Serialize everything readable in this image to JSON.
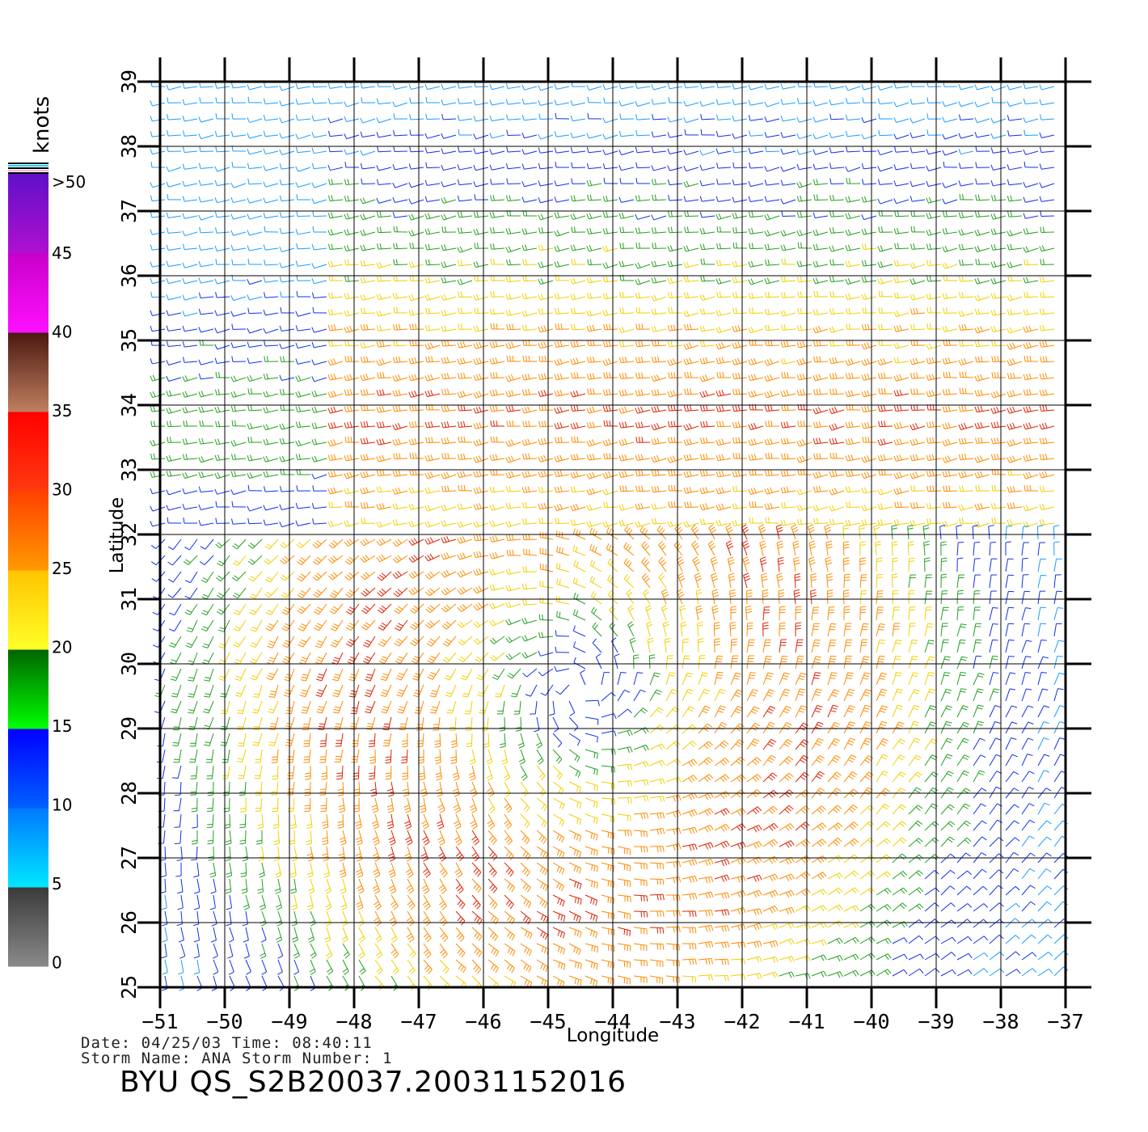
{
  "colorbar": {
    "unit": "knots",
    "labels": [
      ">50",
      "45",
      "40",
      "35",
      "30",
      "25",
      "20",
      "15",
      "10",
      "5",
      "0"
    ],
    "segments": [
      {
        "from": 0,
        "to": 5,
        "top": "#3a3a3a",
        "bottom": "#8a8a8a"
      },
      {
        "from": 5,
        "to": 10,
        "top": "#0078ff",
        "bottom": "#00e8ff"
      },
      {
        "from": 10,
        "to": 15,
        "top": "#0000ff",
        "bottom": "#0060ff"
      },
      {
        "from": 15,
        "to": 20,
        "top": "#006400",
        "bottom": "#00ff00"
      },
      {
        "from": 20,
        "to": 25,
        "top": "#ffc400",
        "bottom": "#ffff28"
      },
      {
        "from": 25,
        "to": 30,
        "top": "#ff4000",
        "bottom": "#ff9a00"
      },
      {
        "from": 30,
        "to": 35,
        "top": "#ff0000",
        "bottom": "#ff3a10"
      },
      {
        "from": 35,
        "to": 40,
        "top": "#4a1810",
        "bottom": "#c08060"
      },
      {
        "from": 40,
        "to": 45,
        "top": "#c800c8",
        "bottom": "#ff10ff"
      },
      {
        "from": 45,
        "to": 50,
        "top": "#6010c8",
        "bottom": "#b010d0"
      }
    ]
  },
  "axes": {
    "xlabel": "Longitude",
    "ylabel": "Latitude",
    "xlim": [
      -51,
      -37
    ],
    "ylim": [
      25,
      39
    ],
    "xticks": [
      "-51",
      "-50",
      "-49",
      "-48",
      "-47",
      "-46",
      "-45",
      "-44",
      "-43",
      "-42",
      "-41",
      "-40",
      "-39",
      "-38",
      "-37"
    ],
    "yticks": [
      "25",
      "26",
      "27",
      "28",
      "29",
      "30",
      "31",
      "32",
      "33",
      "34",
      "35",
      "36",
      "37",
      "38",
      "39"
    ]
  },
  "wind_field": {
    "storm_center_lon": -44.5,
    "storm_center_lat": 29.6,
    "max_speed_knots": 32,
    "front_latitude": 32
  },
  "footer": {
    "date_line": "Date: 04/25/03   Time: 08:40:11",
    "storm_line": "Storm  Name: ANA   Storm  Number: 1",
    "product_id": "BYU  QS_S2B20037.20031152016"
  }
}
